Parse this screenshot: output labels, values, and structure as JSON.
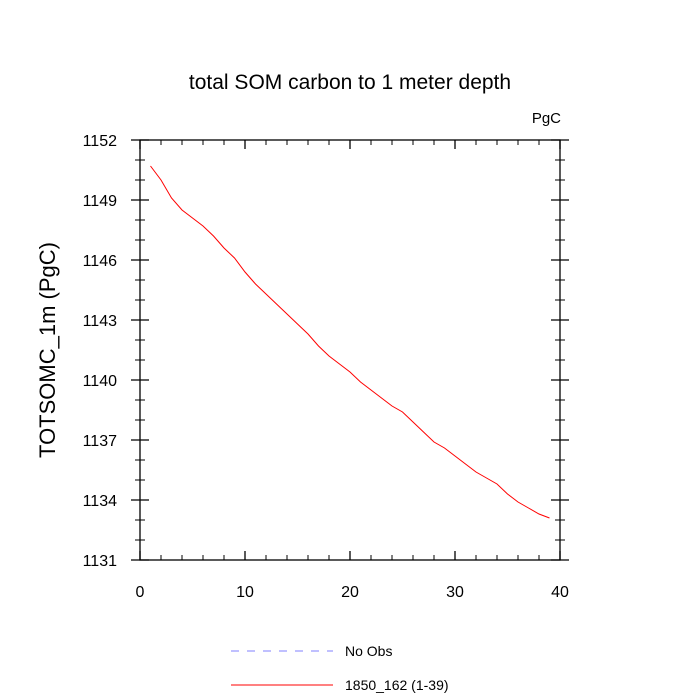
{
  "chart_data": {
    "type": "line",
    "title": "total SOM carbon to 1 meter depth",
    "units": "PgC",
    "xlabel": "",
    "ylabel": "TOTSOMC_1m  (PgC)",
    "xlim": [
      0,
      40
    ],
    "ylim": [
      1131,
      1152
    ],
    "xticks": [
      0,
      10,
      20,
      30,
      40
    ],
    "yticks": [
      1131,
      1134,
      1137,
      1140,
      1143,
      1146,
      1149,
      1152
    ],
    "grid": false,
    "legend_position": "bottom",
    "series": [
      {
        "name": "No Obs",
        "color": "#8080ff",
        "dashed": true,
        "x": [],
        "y": []
      },
      {
        "name": "1850_162 (1-39)",
        "color": "#ff0000",
        "dashed": false,
        "x": [
          1,
          2,
          3,
          4,
          5,
          6,
          7,
          8,
          9,
          10,
          11,
          12,
          13,
          14,
          15,
          16,
          17,
          18,
          19,
          20,
          21,
          22,
          23,
          24,
          25,
          26,
          27,
          28,
          29,
          30,
          31,
          32,
          33,
          34,
          35,
          36,
          37,
          38,
          39
        ],
        "y": [
          1150.7,
          1150.0,
          1149.1,
          1148.5,
          1148.1,
          1147.7,
          1147.2,
          1146.6,
          1146.1,
          1145.4,
          1144.8,
          1144.3,
          1143.8,
          1143.3,
          1142.8,
          1142.3,
          1141.7,
          1141.2,
          1140.8,
          1140.4,
          1139.9,
          1139.5,
          1139.1,
          1138.7,
          1138.4,
          1137.9,
          1137.4,
          1136.9,
          1136.6,
          1136.2,
          1135.8,
          1135.4,
          1135.1,
          1134.8,
          1134.3,
          1133.9,
          1133.6,
          1133.3,
          1133.1
        ]
      }
    ]
  }
}
